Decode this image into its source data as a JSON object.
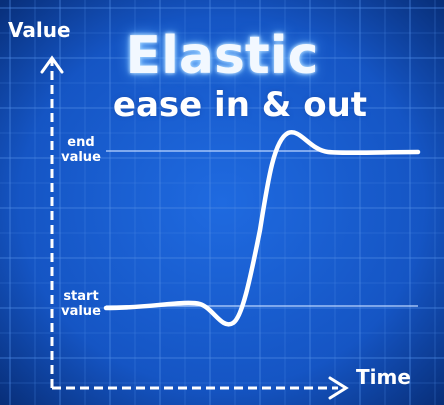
{
  "title": {
    "line1": "Elastic",
    "line2": "ease in & out"
  },
  "axes": {
    "y_label": "Value",
    "x_label": "Time"
  },
  "levels": {
    "end": {
      "line1": "end",
      "line2": "value"
    },
    "start": {
      "line1": "start",
      "line2": "value"
    }
  },
  "colors": {
    "background": "#1558c8",
    "grid": "#4f8ce6",
    "curve": "#ffffff",
    "level_line": "#b9d4ff"
  }
}
